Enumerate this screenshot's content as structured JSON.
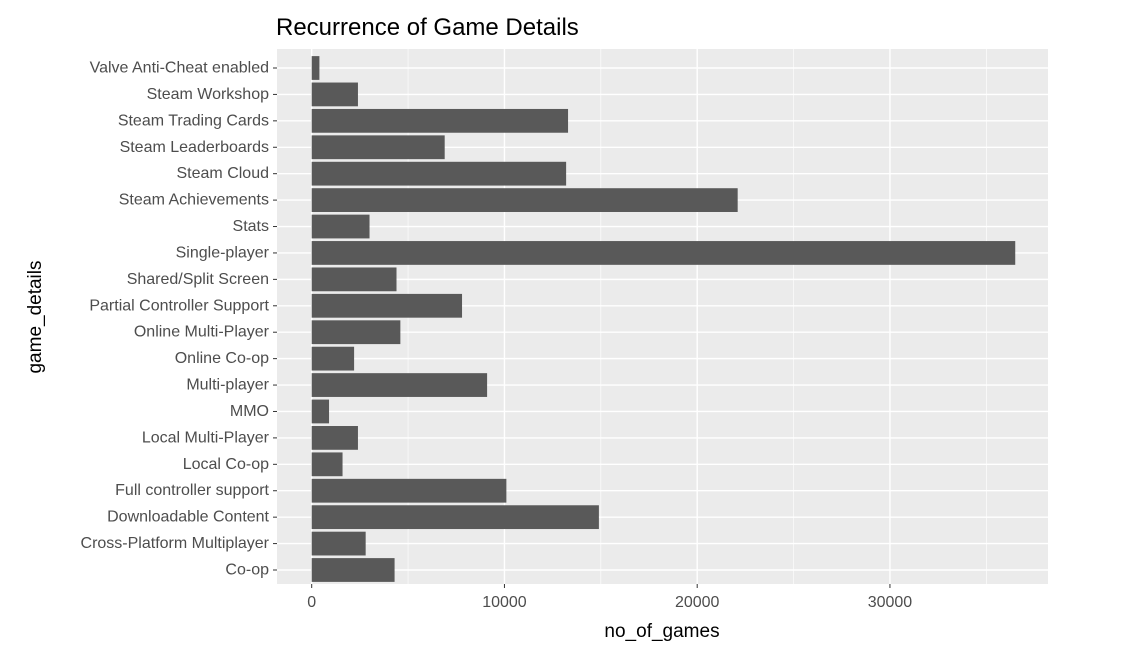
{
  "chart_data": {
    "type": "bar",
    "orientation": "horizontal",
    "title": "Recurrence of Game Details",
    "xlabel": "no_of_games",
    "ylabel": "game_details",
    "categories": [
      "Co-op",
      "Cross-Platform Multiplayer",
      "Downloadable Content",
      "Full controller support",
      "Local Co-op",
      "Local Multi-Player",
      "MMO",
      "Multi-player",
      "Online Co-op",
      "Online Multi-Player",
      "Partial Controller Support",
      "Shared/Split Screen",
      "Single-player",
      "Stats",
      "Steam Achievements",
      "Steam Cloud",
      "Steam Leaderboards",
      "Steam Trading Cards",
      "Steam Workshop",
      "Valve Anti-Cheat enabled"
    ],
    "values": [
      4300,
      2800,
      14900,
      10100,
      1600,
      2400,
      900,
      9100,
      2200,
      4600,
      7800,
      4400,
      36500,
      3000,
      22100,
      13200,
      6900,
      13300,
      2400,
      400
    ],
    "xlim": [
      -1800,
      38200
    ],
    "x_ticks": [
      0,
      10000,
      20000,
      30000
    ],
    "x_tick_labels": [
      "0",
      "10000",
      "20000",
      "30000"
    ],
    "grid": true,
    "legend": "none",
    "colors": {
      "bar": "#595959",
      "panel_background": "#ebebeb",
      "grid": "#ffffff",
      "tick_label": "#4d4d4d"
    }
  }
}
